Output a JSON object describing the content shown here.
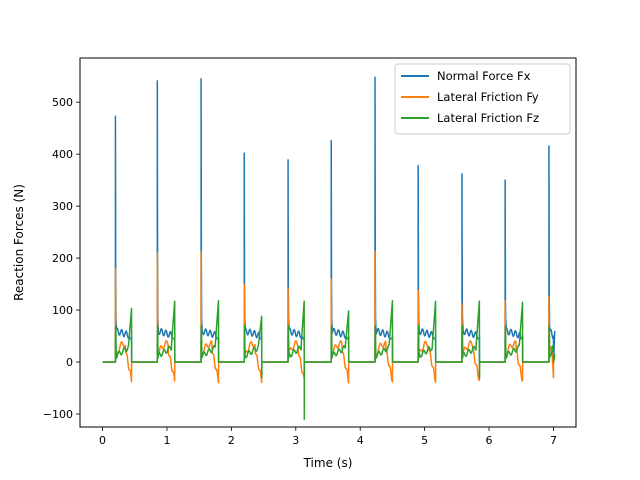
{
  "chart_data": {
    "type": "line",
    "title": "",
    "xlabel": "Time (s)",
    "ylabel": "Reaction Forces (N)",
    "xlim": [
      -0.35,
      7.35
    ],
    "ylim": [
      -125,
      585
    ],
    "xticks": [
      0,
      1,
      2,
      3,
      4,
      5,
      6,
      7
    ],
    "xtick_labels": [
      "0",
      "1",
      "2",
      "3",
      "4",
      "5",
      "6",
      "7"
    ],
    "yticks": [
      -100,
      0,
      100,
      200,
      300,
      400,
      500
    ],
    "ytick_labels": [
      "−100",
      "0",
      "100",
      "200",
      "300",
      "400",
      "500"
    ],
    "grid": false,
    "legend_position": "top-right",
    "stance_phases": [
      {
        "t_start": 0.2,
        "t_end": 0.45,
        "fx_peak": 473,
        "fy_peak": 180,
        "fz_end": 103,
        "fz_min": 0
      },
      {
        "t_start": 0.85,
        "t_end": 1.12,
        "fx_peak": 541,
        "fy_peak": 210,
        "fz_end": 117,
        "fz_min": 0
      },
      {
        "t_start": 1.53,
        "t_end": 1.8,
        "fx_peak": 545,
        "fy_peak": 212,
        "fz_end": 118,
        "fz_min": 0
      },
      {
        "t_start": 2.2,
        "t_end": 2.47,
        "fx_peak": 402,
        "fy_peak": 150,
        "fz_end": 88,
        "fz_min": -30
      },
      {
        "t_start": 2.88,
        "t_end": 3.13,
        "fx_peak": 389,
        "fy_peak": 142,
        "fz_end": 117,
        "fz_min": -110
      },
      {
        "t_start": 3.55,
        "t_end": 3.82,
        "fx_peak": 426,
        "fy_peak": 160,
        "fz_end": 98,
        "fz_min": 0
      },
      {
        "t_start": 4.23,
        "t_end": 4.5,
        "fx_peak": 548,
        "fy_peak": 213,
        "fz_end": 118,
        "fz_min": 0
      },
      {
        "t_start": 4.9,
        "t_end": 5.17,
        "fx_peak": 378,
        "fy_peak": 138,
        "fz_end": 117,
        "fz_min": 0
      },
      {
        "t_start": 5.58,
        "t_end": 5.85,
        "fx_peak": 362,
        "fy_peak": 112,
        "fz_end": 117,
        "fz_min": -30
      },
      {
        "t_start": 6.25,
        "t_end": 6.52,
        "fx_peak": 350,
        "fy_peak": 118,
        "fz_end": 115,
        "fz_min": 0
      },
      {
        "t_start": 6.93,
        "t_end": 7.0,
        "fx_peak": 416,
        "fy_peak": 125,
        "fz_end": 15,
        "fz_min": 0
      }
    ],
    "series": [
      {
        "name": "Normal Force Fx",
        "color": "#1f77b4"
      },
      {
        "name": "Lateral Friction Fy",
        "color": "#ff7f0e"
      },
      {
        "name": "Lateral Friction Fz",
        "color": "#2ca02c"
      }
    ]
  }
}
